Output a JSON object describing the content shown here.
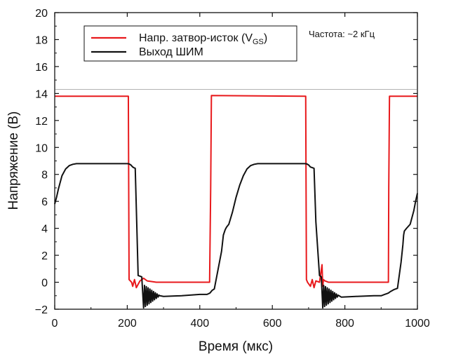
{
  "chart_data": {
    "type": "line",
    "xlabel": "Время (мкс)",
    "ylabel": "Напряжение (В)",
    "xlim": [
      0,
      1000
    ],
    "ylim": [
      -2,
      20
    ],
    "xticks": [
      0,
      200,
      400,
      600,
      800,
      1000
    ],
    "yticks": [
      -2,
      0,
      2,
      4,
      6,
      8,
      10,
      12,
      14,
      16,
      18,
      20
    ],
    "grid": false,
    "legend_position": "top-left",
    "annotation": "Частота: ~2 кГц",
    "series": [
      {
        "name": "Напр. затвор-исток (V",
        "name_sub": "GS",
        "name_suffix": ")",
        "color": "#e8191c",
        "x": [
          0,
          203,
          205,
          212,
          215,
          220,
          225,
          235,
          245,
          255,
          280,
          330,
          380,
          427,
          430,
          432,
          692,
          694,
          697,
          705,
          710,
          715,
          720,
          730,
          737,
          739,
          741,
          745,
          755,
          780,
          830,
          880,
          920,
          921,
          923,
          1000
        ],
        "y": [
          13.8,
          13.8,
          0.2,
          0.0,
          -0.3,
          0.2,
          -0.4,
          0.1,
          0.3,
          0.1,
          0.0,
          0.0,
          0.0,
          0.0,
          7.0,
          13.85,
          13.8,
          0.2,
          0.0,
          -0.3,
          0.2,
          -0.4,
          0.1,
          0.0,
          1.3,
          -0.3,
          0.2,
          0.1,
          0.0,
          0.0,
          0.0,
          0.0,
          0.0,
          7.0,
          13.8,
          13.8
        ]
      },
      {
        "name": "Выход ШИМ",
        "color": "#111111",
        "x": [
          0,
          5,
          10,
          15,
          20,
          30,
          40,
          50,
          60,
          80,
          120,
          160,
          200,
          205,
          210,
          215,
          218,
          222,
          226,
          230,
          240,
          245,
          250,
          270,
          300,
          350,
          400,
          420,
          428,
          434,
          440,
          460,
          465,
          470,
          472,
          474,
          480,
          490,
          500,
          510,
          520,
          530,
          540,
          550,
          560,
          580,
          620,
          660,
          690,
          695,
          700,
          705,
          710,
          715,
          720,
          730,
          735,
          740,
          760,
          790,
          830,
          880,
          900,
          905,
          910,
          915,
          920,
          925,
          935,
          945,
          955,
          960,
          962,
          964,
          970,
          980,
          990,
          995,
          1000
        ],
        "y": [
          5.8,
          6.3,
          6.9,
          7.4,
          7.9,
          8.4,
          8.65,
          8.75,
          8.8,
          8.8,
          8.8,
          8.8,
          8.8,
          8.78,
          8.7,
          8.55,
          8.5,
          8.45,
          4.5,
          0.5,
          0.4,
          0.0,
          -1.0,
          -1.1,
          -1.05,
          -1.0,
          -0.9,
          -0.9,
          -0.8,
          -0.6,
          -0.5,
          2.3,
          3.5,
          3.9,
          4.0,
          4.1,
          4.3,
          5.2,
          6.3,
          7.2,
          7.9,
          8.4,
          8.65,
          8.75,
          8.8,
          8.8,
          8.8,
          8.8,
          8.8,
          8.78,
          8.7,
          8.55,
          8.5,
          8.45,
          4.5,
          0.5,
          0.4,
          0.0,
          -1.0,
          -1.1,
          -1.05,
          -1.0,
          -1.0,
          -0.95,
          -0.9,
          -0.85,
          -0.8,
          -0.7,
          -0.55,
          -0.45,
          1.5,
          2.8,
          3.5,
          3.8,
          4.0,
          4.3,
          5.3,
          6.0,
          6.6
        ]
      }
    ],
    "ringing": [
      {
        "start": 245,
        "end": 290,
        "center": -1.0,
        "amp": 0.9,
        "step": 2.5
      },
      {
        "start": 739,
        "end": 784,
        "center": -1.0,
        "amp": 0.9,
        "step": 2.5
      }
    ]
  }
}
